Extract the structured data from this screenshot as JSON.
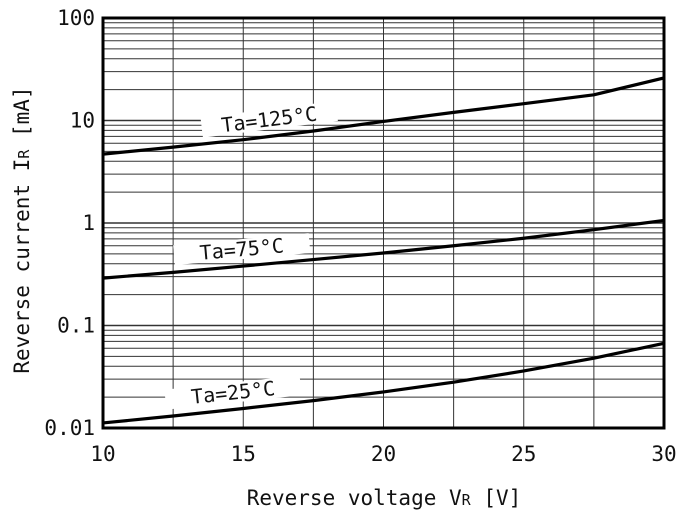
{
  "chart_data": {
    "type": "line",
    "title": "",
    "xlabel": "Reverse voltage V",
    "xlabel_sub": "R",
    "xlabel_unit": " [V]",
    "ylabel": "Reverse current I",
    "ylabel_sub": "R",
    "ylabel_unit": " [mA]",
    "x_scale": "linear",
    "y_scale": "log",
    "xlim": [
      10,
      30
    ],
    "ylim": [
      0.01,
      100
    ],
    "grid": true,
    "x_ticks": [
      {
        "value": 10,
        "label": "10"
      },
      {
        "value": 15,
        "label": "15"
      },
      {
        "value": 20,
        "label": "20"
      },
      {
        "value": 25,
        "label": "25"
      },
      {
        "value": 30,
        "label": "30"
      }
    ],
    "y_ticks": [
      {
        "value": 0.01,
        "label": "0.01"
      },
      {
        "value": 0.1,
        "label": "0.1"
      },
      {
        "value": 1,
        "label": "1"
      },
      {
        "value": 10,
        "label": "10"
      },
      {
        "value": 100,
        "label": "100"
      }
    ],
    "series": [
      {
        "name": "Ta=125°C",
        "x": [
          10,
          12.5,
          15,
          17.5,
          20,
          22.5,
          25,
          27.5,
          30
        ],
        "y": [
          4.7,
          5.5,
          6.5,
          7.9,
          9.8,
          12.0,
          14.6,
          17.8,
          26.0
        ]
      },
      {
        "name": "Ta=75°C",
        "x": [
          10,
          12.5,
          15,
          17.5,
          20,
          22.5,
          25,
          27.5,
          30
        ],
        "y": [
          0.29,
          0.33,
          0.38,
          0.44,
          0.51,
          0.6,
          0.71,
          0.86,
          1.06
        ]
      },
      {
        "name": "Ta=25°C",
        "x": [
          10,
          12.5,
          15,
          17.5,
          20,
          22.5,
          25,
          27.5,
          30
        ],
        "y": [
          0.0112,
          0.0131,
          0.0155,
          0.0185,
          0.0225,
          0.028,
          0.036,
          0.048,
          0.067
        ]
      }
    ]
  }
}
